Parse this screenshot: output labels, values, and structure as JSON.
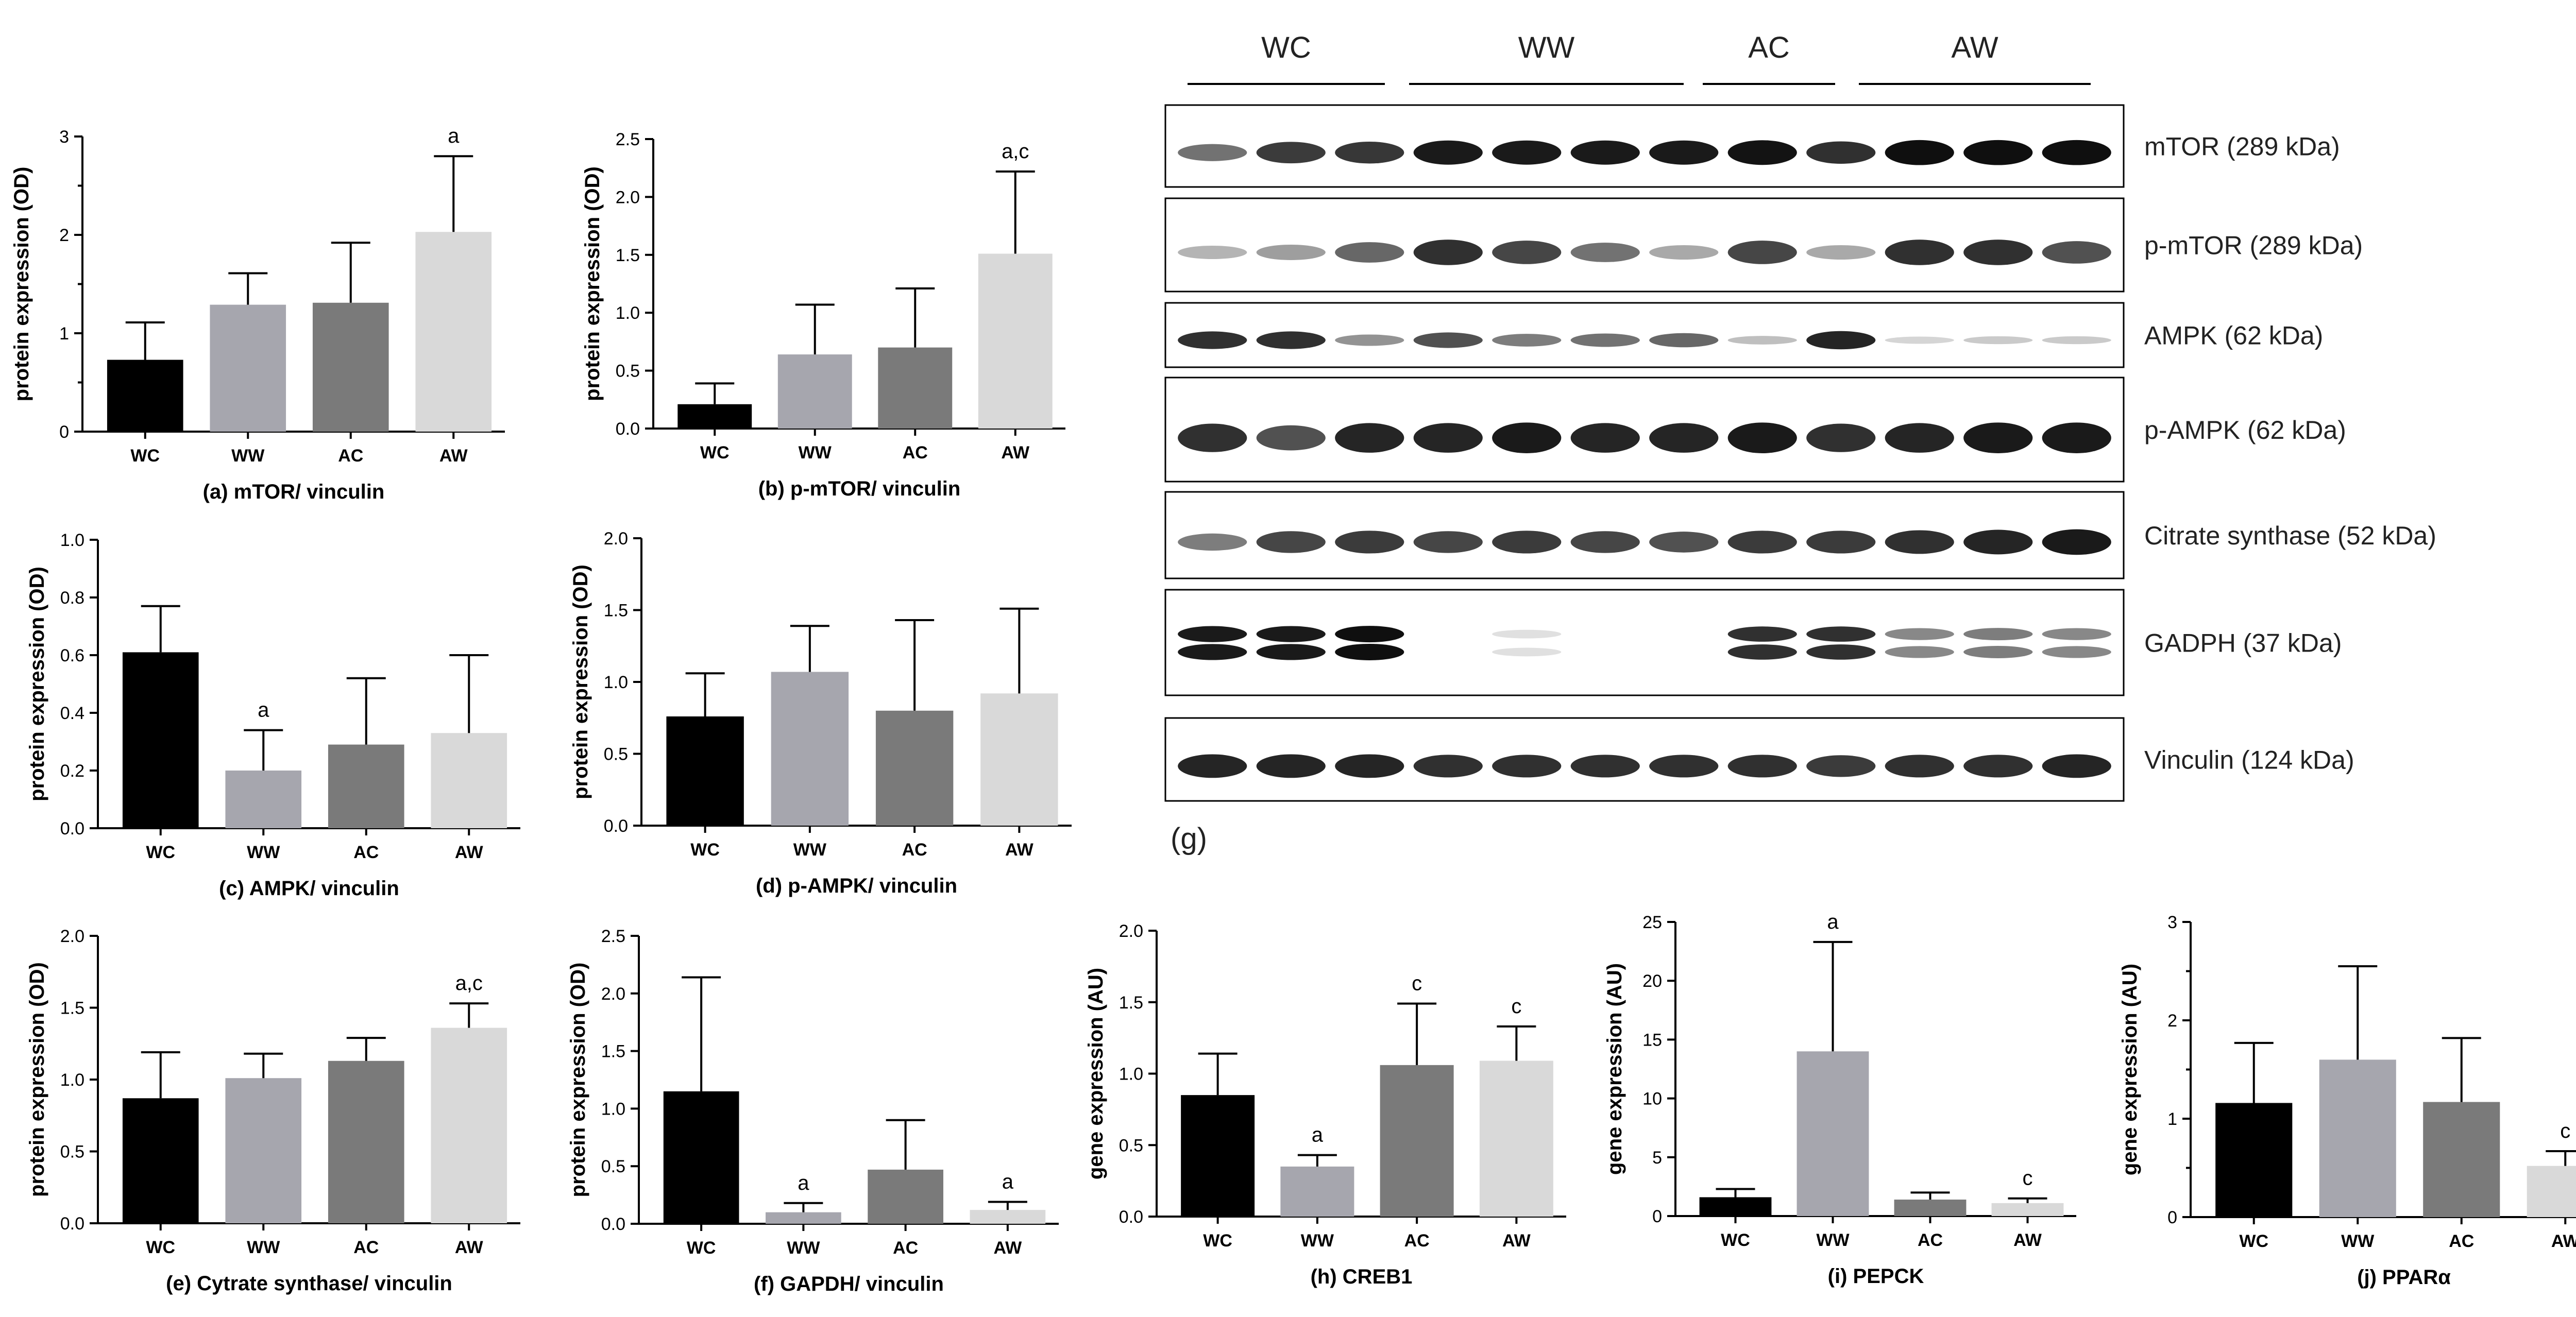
{
  "chart_data": [
    {
      "id": "a",
      "type": "bar",
      "categories": [
        "WC",
        "WW",
        "AC",
        "AW"
      ],
      "values": [
        0.73,
        1.29,
        1.31,
        2.03
      ],
      "errors": [
        0.38,
        0.32,
        0.61,
        0.77
      ],
      "significance": [
        "",
        "",
        "",
        "a"
      ],
      "colors": [
        "#000000",
        "#a6a6ae",
        "#7a7a7a",
        "#d9d9d9"
      ],
      "ylabel": "protein expression (OD)",
      "caption": "(a) mTOR/ vinculin",
      "ylim": [
        0,
        3
      ],
      "yticks": [
        "0",
        "1",
        "2",
        "3"
      ],
      "minor_ticks": 1
    },
    {
      "id": "b",
      "type": "bar",
      "categories": [
        "WC",
        "WW",
        "AC",
        "AW"
      ],
      "values": [
        0.21,
        0.64,
        0.7,
        1.51
      ],
      "errors": [
        0.18,
        0.43,
        0.51,
        0.71
      ],
      "significance": [
        "",
        "",
        "",
        "a,c"
      ],
      "colors": [
        "#000000",
        "#a6a6ae",
        "#7a7a7a",
        "#d9d9d9"
      ],
      "ylabel": "protein expression (OD)",
      "caption": "(b) p-mTOR/ vinculin",
      "ylim": [
        0,
        2.5
      ],
      "yticks": [
        "0.0",
        "0.5",
        "1.0",
        "1.5",
        "2.0",
        "2.5"
      ],
      "minor_ticks": 0
    },
    {
      "id": "c",
      "type": "bar",
      "categories": [
        "WC",
        "WW",
        "AC",
        "AW"
      ],
      "values": [
        0.61,
        0.2,
        0.29,
        0.33
      ],
      "errors": [
        0.16,
        0.14,
        0.23,
        0.27
      ],
      "significance": [
        "",
        "a",
        "",
        ""
      ],
      "colors": [
        "#000000",
        "#a6a6ae",
        "#7a7a7a",
        "#d9d9d9"
      ],
      "ylabel": "protein expression (OD)",
      "caption": "(c) AMPK/ vinculin",
      "ylim": [
        0,
        1.0
      ],
      "yticks": [
        "0.0",
        "0.2",
        "0.4",
        "0.6",
        "0.8",
        "1.0"
      ],
      "minor_ticks": 0
    },
    {
      "id": "d",
      "type": "bar",
      "categories": [
        "WC",
        "WW",
        "AC",
        "AW"
      ],
      "values": [
        0.76,
        1.07,
        0.8,
        0.92
      ],
      "errors": [
        0.3,
        0.32,
        0.63,
        0.59
      ],
      "significance": [
        "",
        "",
        "",
        ""
      ],
      "colors": [
        "#000000",
        "#a6a6ae",
        "#7a7a7a",
        "#d9d9d9"
      ],
      "ylabel": "protein expression (OD)",
      "caption": "(d) p-AMPK/ vinculin",
      "ylim": [
        0,
        2.0
      ],
      "yticks": [
        "0.0",
        "0.5",
        "1.0",
        "1.5",
        "2.0"
      ],
      "minor_ticks": 0
    },
    {
      "id": "e",
      "type": "bar",
      "categories": [
        "WC",
        "WW",
        "AC",
        "AW"
      ],
      "values": [
        0.87,
        1.01,
        1.13,
        1.36
      ],
      "errors": [
        0.32,
        0.17,
        0.16,
        0.17
      ],
      "significance": [
        "",
        "",
        "",
        "a,c"
      ],
      "colors": [
        "#000000",
        "#a6a6ae",
        "#7a7a7a",
        "#d9d9d9"
      ],
      "ylabel": "protein expression (OD)",
      "caption": "(e) Cytrate synthase/ vinculin",
      "ylim": [
        0,
        2.0
      ],
      "yticks": [
        "0.0",
        "0.5",
        "1.0",
        "1.5",
        "2.0"
      ],
      "minor_ticks": 0
    },
    {
      "id": "f",
      "type": "bar",
      "categories": [
        "WC",
        "WW",
        "AC",
        "AW"
      ],
      "values": [
        1.15,
        0.1,
        0.47,
        0.12
      ],
      "errors": [
        0.99,
        0.08,
        0.43,
        0.07
      ],
      "significance": [
        "",
        "a",
        "",
        "a"
      ],
      "colors": [
        "#000000",
        "#a6a6ae",
        "#7a7a7a",
        "#d9d9d9"
      ],
      "ylabel": "protein expression (OD)",
      "caption": "(f) GAPDH/ vinculin",
      "ylim": [
        0,
        2.5
      ],
      "yticks": [
        "0.0",
        "0.5",
        "1.0",
        "1.5",
        "2.0",
        "2.5"
      ],
      "minor_ticks": 0
    },
    {
      "id": "h",
      "type": "bar",
      "categories": [
        "WC",
        "WW",
        "AC",
        "AW"
      ],
      "values": [
        0.85,
        0.35,
        1.06,
        1.09
      ],
      "errors": [
        0.29,
        0.08,
        0.43,
        0.24
      ],
      "significance": [
        "",
        "a",
        "c",
        "c"
      ],
      "colors": [
        "#000000",
        "#a6a6ae",
        "#7a7a7a",
        "#d9d9d9"
      ],
      "ylabel": "gene expression (AU)",
      "caption": "(h) CREB1",
      "ylim": [
        0,
        2.0
      ],
      "yticks": [
        "0.0",
        "0.5",
        "1.0",
        "1.5",
        "2.0"
      ],
      "minor_ticks": 0
    },
    {
      "id": "i",
      "type": "bar",
      "categories": [
        "WC",
        "WW",
        "AC",
        "AW"
      ],
      "values": [
        1.6,
        14.0,
        1.4,
        1.1
      ],
      "errors": [
        0.7,
        9.3,
        0.6,
        0.4
      ],
      "significance": [
        "",
        "a",
        "",
        "c"
      ],
      "colors": [
        "#000000",
        "#a6a6ae",
        "#7a7a7a",
        "#d9d9d9"
      ],
      "ylabel": "gene expression (AU)",
      "caption": "(i) PEPCK",
      "ylim": [
        0,
        25
      ],
      "yticks": [
        "0",
        "5",
        "10",
        "15",
        "20",
        "25"
      ],
      "minor_ticks": 0
    },
    {
      "id": "j",
      "type": "bar",
      "categories": [
        "WC",
        "WW",
        "AC",
        "AW"
      ],
      "values": [
        1.16,
        1.6,
        1.17,
        0.52
      ],
      "errors": [
        0.61,
        0.95,
        0.65,
        0.15
      ],
      "significance": [
        "",
        "",
        "",
        "c"
      ],
      "colors": [
        "#000000",
        "#a6a6ae",
        "#7a7a7a",
        "#d9d9d9"
      ],
      "ylabel": "gene expression (AU)",
      "caption": "(j) PPARα",
      "ylim": [
        0,
        3
      ],
      "yticks": [
        "0",
        "1",
        "2",
        "3"
      ],
      "minor_ticks": 1
    }
  ],
  "western_blot": {
    "panel_letter": "(g)",
    "groups": [
      {
        "label": "WC",
        "lanes": 3
      },
      {
        "label": "WW",
        "lanes": 4
      },
      {
        "label": "AC",
        "lanes": 2
      },
      {
        "label": "AW",
        "lanes": 3
      }
    ],
    "blots": [
      {
        "label": "mTOR (289 kDa)",
        "intensity": [
          0.55,
          0.8,
          0.82,
          0.95,
          0.95,
          0.95,
          0.95,
          0.98,
          0.85,
          1.0,
          1.0,
          1.0
        ]
      },
      {
        "label": "p-mTOR (289 kDa)",
        "intensity": [
          0.25,
          0.35,
          0.6,
          0.85,
          0.75,
          0.55,
          0.3,
          0.75,
          0.3,
          0.85,
          0.85,
          0.7
        ]
      },
      {
        "label": "AMPK (62 kDa)",
        "intensity": [
          0.85,
          0.85,
          0.4,
          0.7,
          0.5,
          0.55,
          0.6,
          0.2,
          0.9,
          0.1,
          0.15,
          0.15
        ]
      },
      {
        "label": "p-AMPK (62 kDa)",
        "intensity": [
          0.85,
          0.7,
          0.9,
          0.9,
          0.95,
          0.9,
          0.9,
          0.95,
          0.85,
          0.9,
          0.95,
          0.95
        ]
      },
      {
        "label": "Citrate synthase (52 kDa)",
        "intensity": [
          0.5,
          0.75,
          0.8,
          0.75,
          0.8,
          0.75,
          0.7,
          0.8,
          0.8,
          0.85,
          0.9,
          0.95
        ]
      },
      {
        "label": "GADPH (37 kDa)",
        "intensity": [
          0.95,
          0.95,
          1.0,
          0.0,
          0.05,
          0.0,
          0.0,
          0.85,
          0.85,
          0.45,
          0.5,
          0.45
        ],
        "double_band": true
      },
      {
        "label": "Vinculin (124 kDa)",
        "intensity": [
          0.9,
          0.9,
          0.9,
          0.85,
          0.85,
          0.85,
          0.85,
          0.85,
          0.8,
          0.85,
          0.85,
          0.9
        ]
      }
    ]
  }
}
